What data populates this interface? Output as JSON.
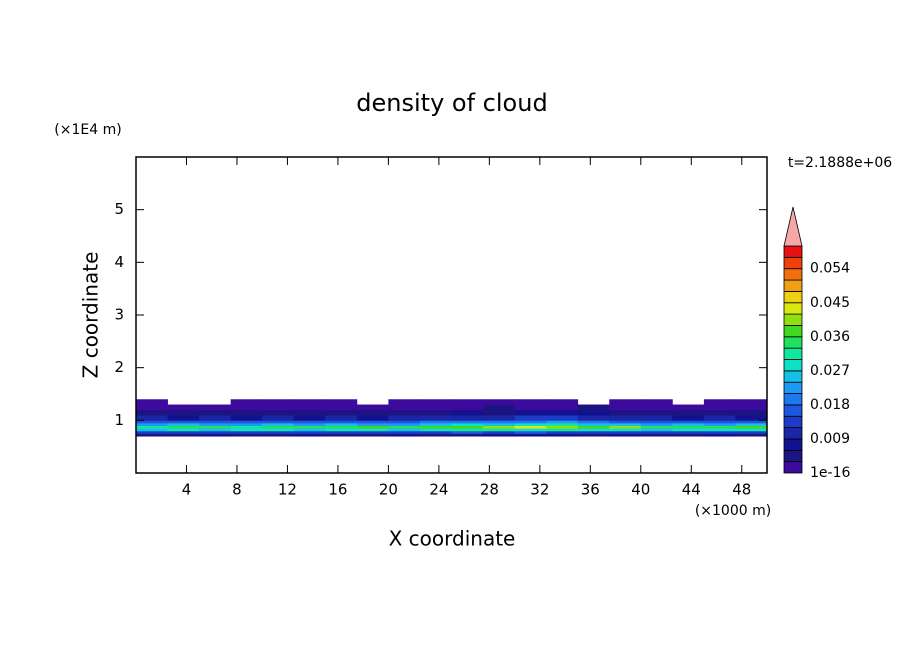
{
  "chart_data": {
    "type": "contour",
    "title": "density of cloud",
    "x_label": "X coordinate",
    "y_label": "Z coordinate",
    "x_unit": "(×1000 m)",
    "y_unit": "(×1E4 m)",
    "time_label": "t=2.1888e+06",
    "xlim": [
      0,
      50
    ],
    "ylim": [
      0,
      6
    ],
    "xticks": [
      4,
      8,
      12,
      16,
      20,
      24,
      28,
      32,
      36,
      40,
      44,
      48
    ],
    "yticks": [
      1,
      2,
      3,
      4,
      5
    ],
    "x": [
      0,
      2.5,
      5,
      7.5,
      10,
      12.5,
      15,
      17.5,
      20,
      22.5,
      25,
      27.5,
      30,
      32.5,
      35,
      37.5,
      40,
      42.5,
      45,
      47.5,
      50
    ],
    "y": [
      0.7,
      0.75,
      0.8,
      0.85,
      0.9,
      0.95,
      1.0,
      1.1,
      1.2,
      1.3,
      1.4
    ],
    "z": [
      [
        0.005,
        0.005,
        0.006,
        0.005,
        0.005,
        0.006,
        0.005,
        0.005,
        0.006,
        0.005,
        0.005,
        0.006,
        0.007,
        0.006,
        0.005,
        0.006,
        0.005,
        0.005,
        0.006,
        0.005
      ],
      [
        0.013,
        0.012,
        0.014,
        0.013,
        0.012,
        0.013,
        0.014,
        0.013,
        0.012,
        0.014,
        0.015,
        0.013,
        0.016,
        0.014,
        0.013,
        0.012,
        0.014,
        0.013,
        0.012,
        0.013
      ],
      [
        0.026,
        0.028,
        0.025,
        0.027,
        0.029,
        0.026,
        0.028,
        0.027,
        0.026,
        0.028,
        0.03,
        0.032,
        0.029,
        0.031,
        0.028,
        0.027,
        0.026,
        0.028,
        0.027,
        0.029
      ],
      [
        0.031,
        0.033,
        0.034,
        0.032,
        0.035,
        0.033,
        0.034,
        0.036,
        0.035,
        0.037,
        0.038,
        0.041,
        0.043,
        0.039,
        0.036,
        0.04,
        0.035,
        0.033,
        0.034,
        0.036
      ],
      [
        0.022,
        0.024,
        0.021,
        0.023,
        0.025,
        0.022,
        0.024,
        0.023,
        0.022,
        0.026,
        0.027,
        0.025,
        0.028,
        0.03,
        0.026,
        0.024,
        0.023,
        0.025,
        0.022,
        0.024
      ],
      [
        0.016,
        0.015,
        0.017,
        0.016,
        0.015,
        0.017,
        0.016,
        0.015,
        0.017,
        0.018,
        0.019,
        0.02,
        0.018,
        0.021,
        0.019,
        0.017,
        0.016,
        0.015,
        0.017,
        0.016
      ],
      [
        0.009,
        0.008,
        0.009,
        0.008,
        0.009,
        0.008,
        0.009,
        0.008,
        0.01,
        0.009,
        0.011,
        0.01,
        0.012,
        0.014,
        0.011,
        0.01,
        0.009,
        0.008,
        0.009,
        0.008
      ],
      [
        0.004,
        0.004,
        0.005,
        0.004,
        0.004,
        0.005,
        0.004,
        0.004,
        0.005,
        0.005,
        0.006,
        0.005,
        0.006,
        0.007,
        0.006,
        0.005,
        0.004,
        0.004,
        0.005,
        0.004
      ],
      [
        0.002,
        0.002,
        0.001,
        0.002,
        0.002,
        0.001,
        0.002,
        0.002,
        0.001,
        0.002,
        0.002,
        0.003,
        0.002,
        0.002,
        0.003,
        0.002,
        0.002,
        0.001,
        0.002,
        0.002
      ],
      [
        0.001,
        null,
        null,
        0.001,
        0.001,
        0.001,
        0.001,
        null,
        0.001,
        0.001,
        0.001,
        0.001,
        0.001,
        0.001,
        null,
        0.001,
        0.001,
        null,
        0.001,
        0.001
      ]
    ],
    "colorbar": {
      "levels": [
        1e-16,
        0.003,
        0.006,
        0.009,
        0.012,
        0.015,
        0.018,
        0.021,
        0.024,
        0.027,
        0.03,
        0.033,
        0.036,
        0.039,
        0.042,
        0.045,
        0.048,
        0.051,
        0.054,
        0.057,
        0.06
      ],
      "colors": [
        "#3c0a9c",
        "#1c1480",
        "#12128e",
        "#1a26a6",
        "#1c3cc8",
        "#1e56e0",
        "#1e78f0",
        "#1e9af5",
        "#18c0e8",
        "#10e0c8",
        "#10e8a0",
        "#20e060",
        "#40d820",
        "#90e010",
        "#d8e810",
        "#f0d010",
        "#f0a010",
        "#f07010",
        "#f04010",
        "#e81010"
      ],
      "extend_color": "#f4a8a8",
      "ticks": [
        1e-16,
        0.009,
        0.018,
        0.027,
        0.036,
        0.045,
        0.054
      ]
    }
  }
}
